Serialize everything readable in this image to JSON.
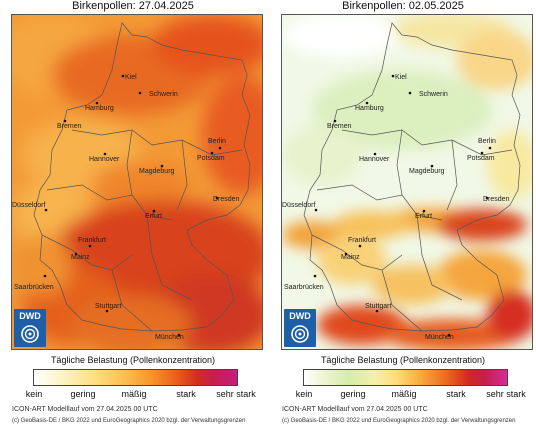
{
  "left_map": {
    "title": "Birkenpollen: 27.04.2025",
    "legend_title": "Tägliche Belastung (Pollenkonzentration)",
    "footer_model": "ICON-ART Modelllauf vom  27.04.2025 00 UTC",
    "footer_copyright": "(c) GeoBasis-DE / BKG 2022 und EuroGeographics 2020 bzgl. der Verwaltungsgrenzen"
  },
  "right_map": {
    "title": "Birkenpollen: 02.05.2025",
    "legend_title": "Tägliche Belastung (Pollenkonzentration)",
    "footer_model": "ICON-ART Modelllauf vom  27.04.2025 00 UTC",
    "footer_copyright": "(c) GeoBasis-DE / BKG 2022 und EuroGeographics 2020 bzgl. der Verwaltungsgrenzen"
  },
  "logo_text": "DWD",
  "legend_levels": [
    "kein",
    "gering",
    "mäßig",
    "stark",
    "sehr stark"
  ],
  "cities": [
    "Kiel",
    "Schwerin",
    "Hamburg",
    "Bremen",
    "Berlin",
    "Hannover",
    "Potsdam",
    "Magdeburg",
    "Düsseldorf",
    "Dresden",
    "Erfurt",
    "Frankfurt",
    "Mainz",
    "Saarbrücken",
    "Stuttgart",
    "München"
  ],
  "colors": {
    "left_base": "#f29a35",
    "left_south": "#d6421f",
    "right_base": "#eef6df",
    "right_hot": "#d23a22",
    "border": "#555555"
  }
}
